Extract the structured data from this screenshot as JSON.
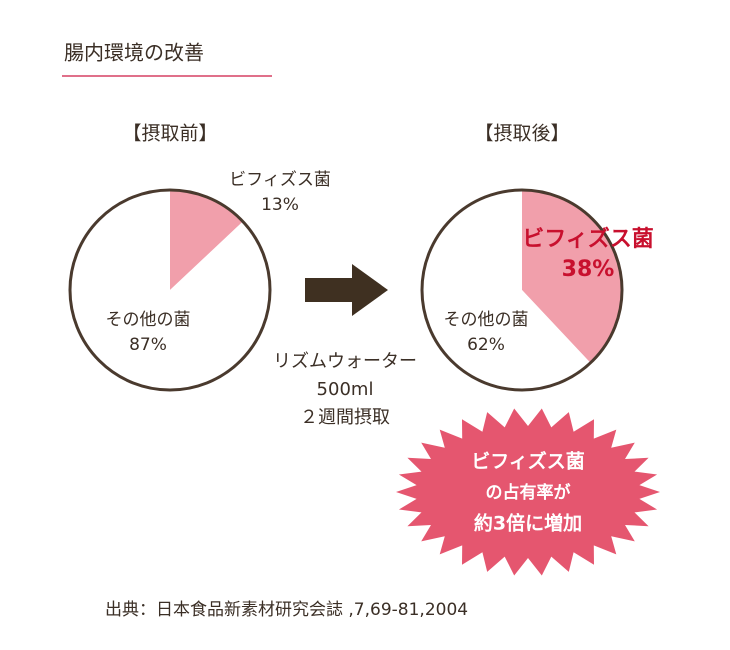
{
  "title": "腸内環境の改善",
  "chart_data": [
    {
      "type": "pie",
      "title": "【摂取前】",
      "categories": [
        "ビフィズス菌",
        "その他の菌"
      ],
      "values": [
        13,
        87
      ],
      "value_labels": [
        "13%",
        "87%"
      ],
      "colors": [
        "#f19fab",
        "#ffffff"
      ]
    },
    {
      "type": "pie",
      "title": "【摂取後】",
      "categories": [
        "ビフィズス菌",
        "その他の菌"
      ],
      "values": [
        38,
        62
      ],
      "value_labels": [
        "38%",
        "62%"
      ],
      "colors": [
        "#f19fab",
        "#ffffff"
      ]
    }
  ],
  "arrow_note": [
    "リズムウォーター",
    "500ml",
    "２週間摂取"
  ],
  "burst": [
    "ビフィズス菌",
    "の占有率が",
    "約3倍に増加"
  ],
  "source": "出典：日本食品新素材研究会誌 ,7,69-81,2004"
}
